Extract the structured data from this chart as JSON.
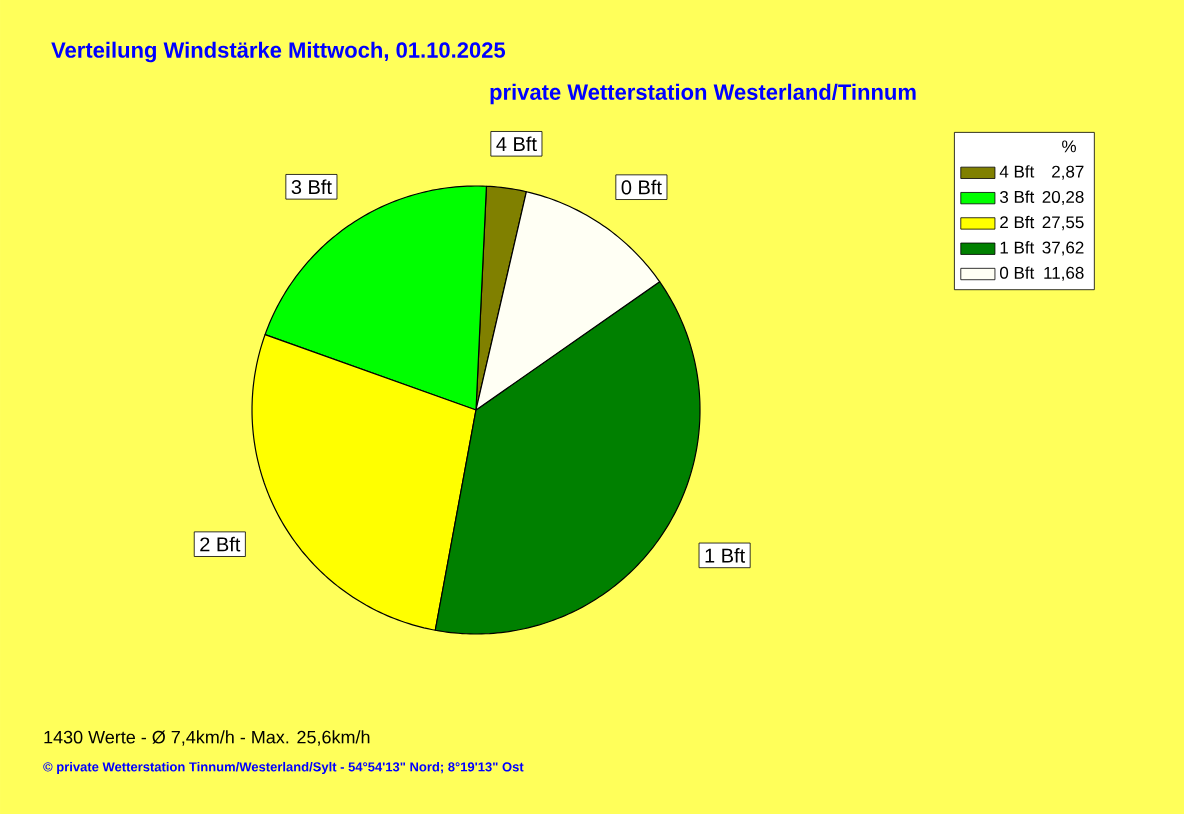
{
  "chart_data": {
    "type": "pie",
    "title": "Verteilung Windstärke  Mittwoch, 01.10.2025",
    "subtitle": "private Wetterstation Westerland/Tinnum",
    "categories": [
      "4 Bft",
      "3 Bft",
      "2 Bft",
      "1 Bft",
      "0 Bft"
    ],
    "values": [
      2.87,
      20.28,
      27.55,
      37.62,
      11.68
    ],
    "value_labels": [
      "2,87",
      "20,28",
      "27,55",
      "37,62",
      "11,68"
    ],
    "colors": [
      "#808000",
      "#00ff00",
      "#ffff00",
      "#008000",
      "#fffff4"
    ],
    "legend": "top right",
    "legend_title": "%",
    "annotations": [
      "1430 Werte   -   Ø 7,4km/h  -  Max. 25,6km/h",
      "© private Wetterstation Tinnum/Westerland/Sylt   -   54°54'13\" Nord; 8°19'13\" Ost"
    ]
  }
}
